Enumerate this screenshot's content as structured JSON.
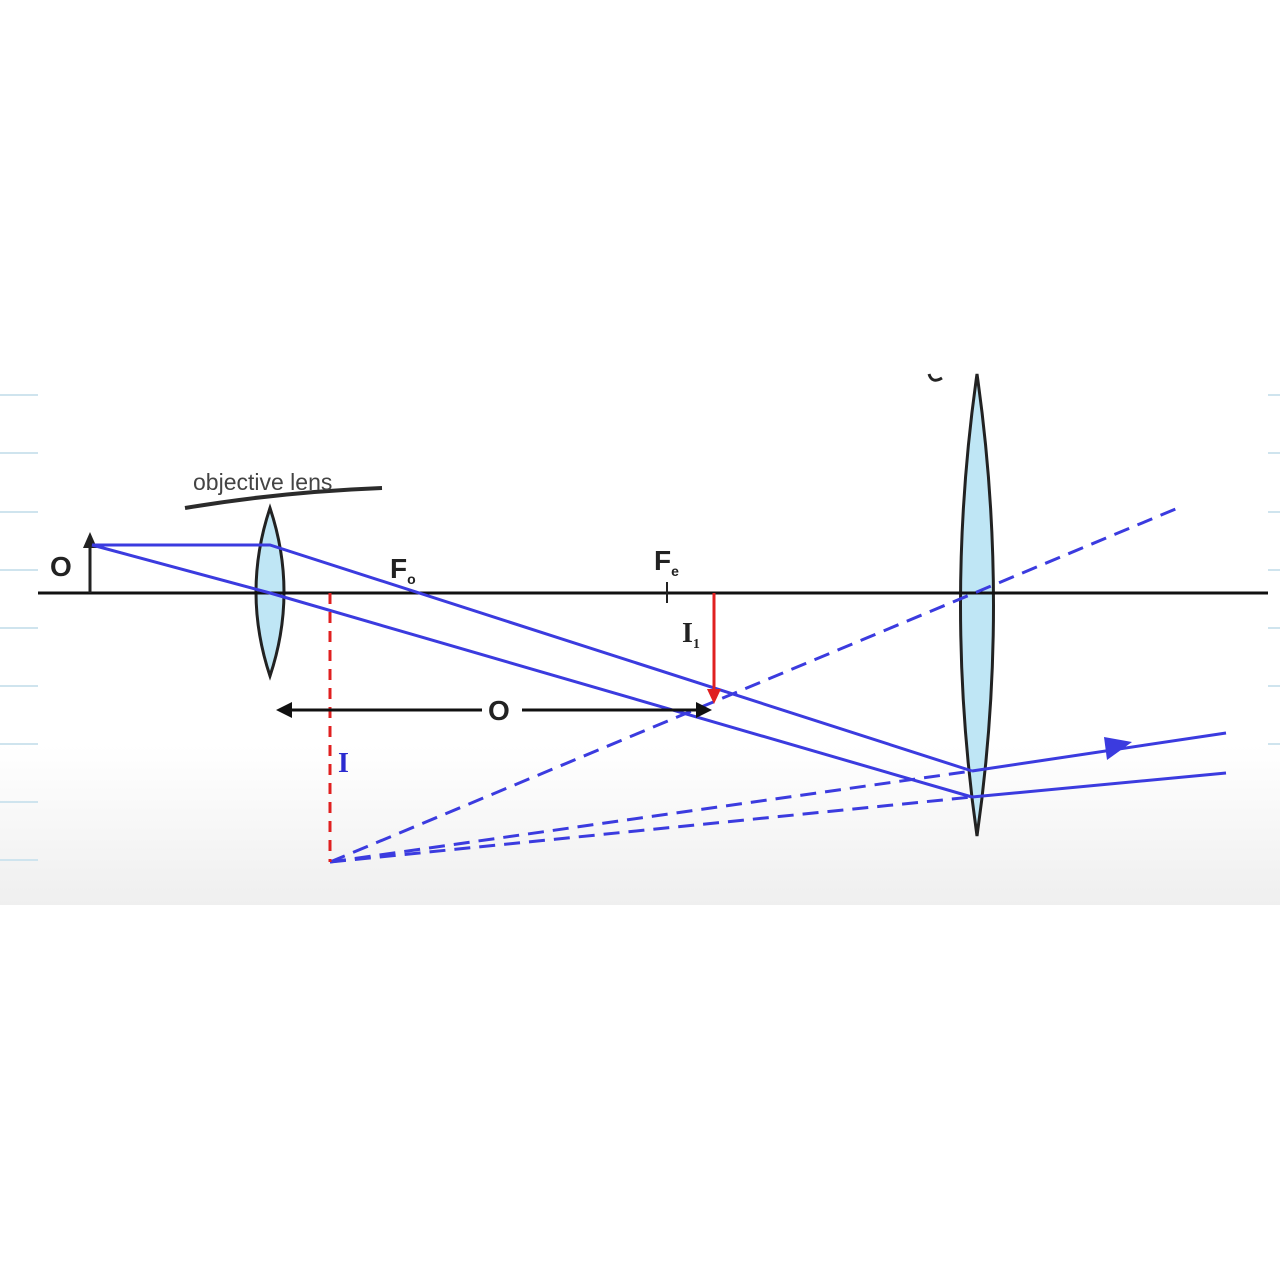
{
  "diagram": {
    "labels": {
      "object": "O",
      "objective_caption": "objective lens",
      "focus_objective": "F",
      "focus_objective_sub": "o",
      "focus_eyepiece": "F",
      "focus_eyepiece_sub": "e",
      "intermediate_image": "I",
      "intermediate_image_sub": "1",
      "separation": "O",
      "final_image": "I"
    },
    "colors": {
      "rays": "#3b3bdf",
      "axis": "#111111",
      "intermediate_image": "#e02020",
      "final_image": "#e02020",
      "lens_fill": "#bfe6f5",
      "lens_stroke": "#222222",
      "final_image_label": "#2b2bd0"
    }
  }
}
